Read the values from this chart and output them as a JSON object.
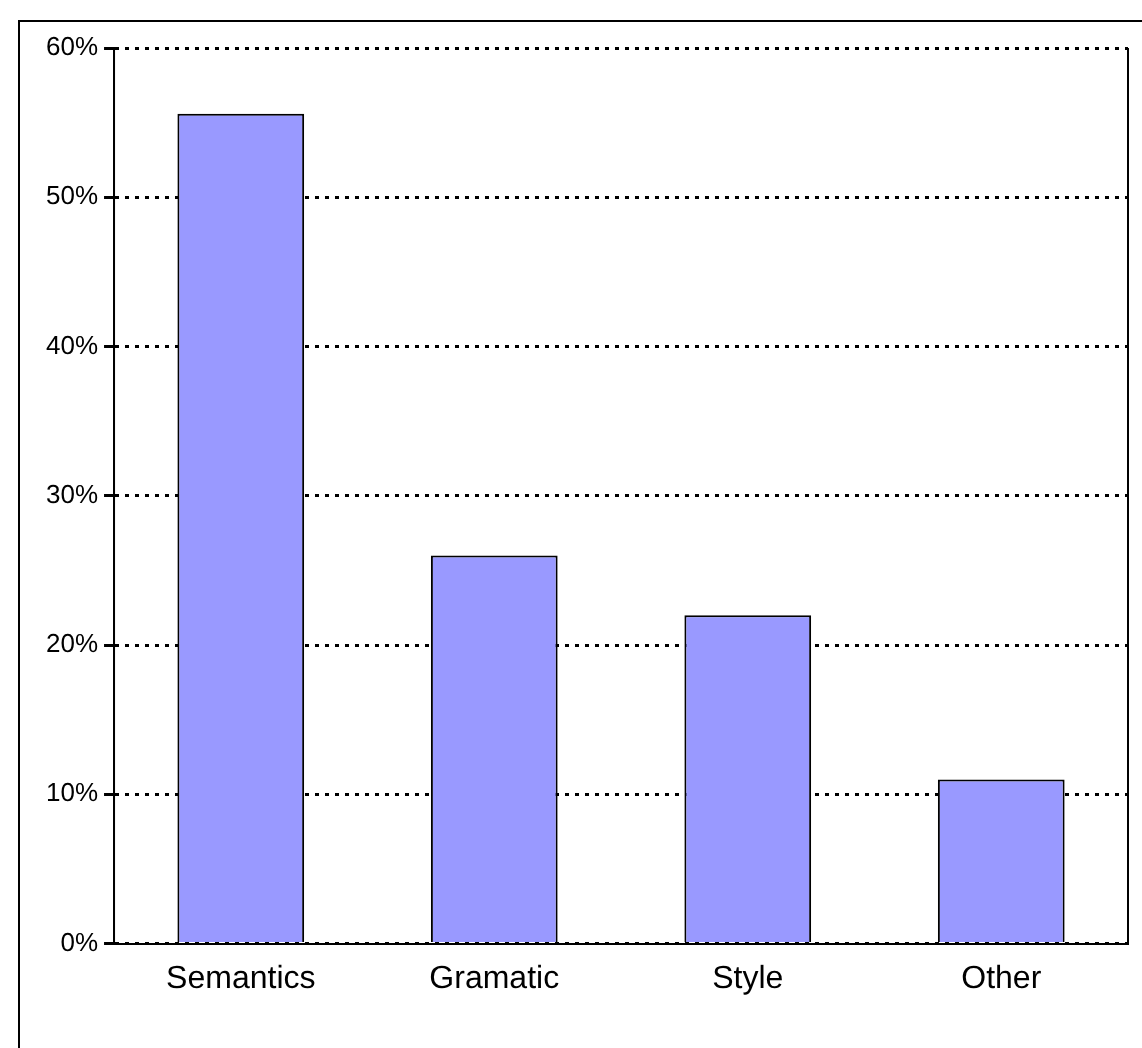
{
  "chart_data": {
    "type": "bar",
    "categories": [
      "Semantics",
      "Gramatic",
      "Style",
      "Other"
    ],
    "values": [
      55.6,
      26,
      22,
      11
    ],
    "color": "#9999ff",
    "ylim": [
      0,
      60
    ],
    "yticks": [
      {
        "value": 0,
        "label": "0%"
      },
      {
        "value": 10,
        "label": "10%"
      },
      {
        "value": 20,
        "label": "20%"
      },
      {
        "value": 30,
        "label": "30%"
      },
      {
        "value": 40,
        "label": "40%"
      },
      {
        "value": 50,
        "label": "50%"
      },
      {
        "value": 60,
        "label": "60%"
      }
    ],
    "grid": "y",
    "line_style": "dotted",
    "legend": false
  }
}
